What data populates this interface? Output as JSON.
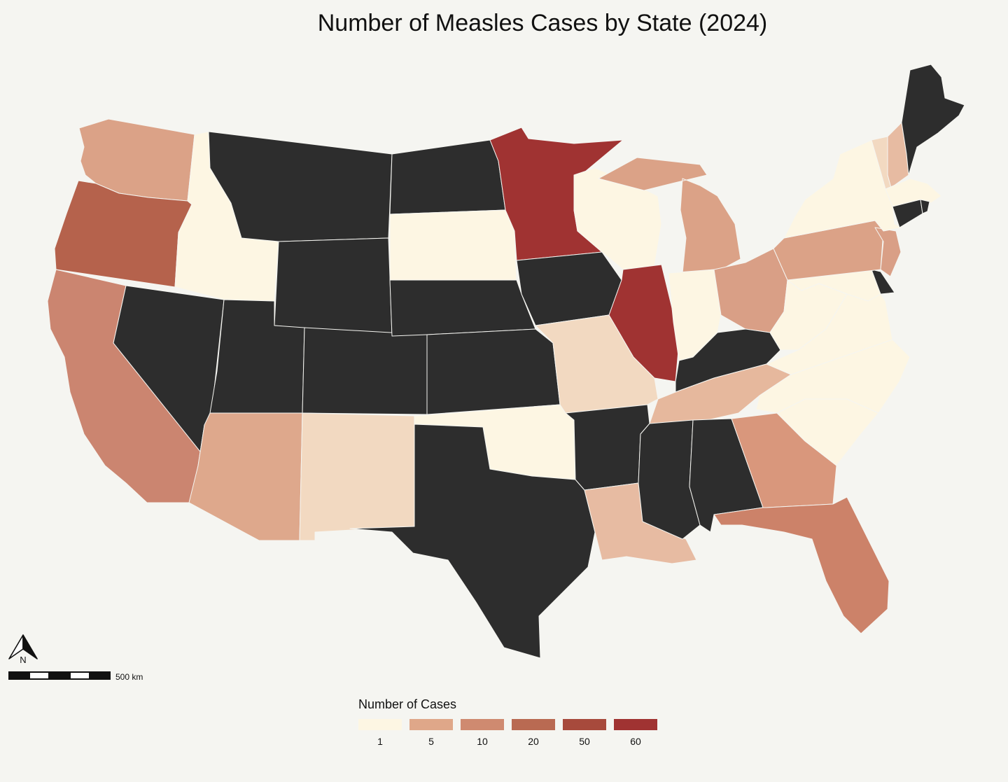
{
  "title": "Number of Measles Cases by State (2024)",
  "colors": {
    "background": "#f5f5f1",
    "no_data_or_other": "#2d2d2d",
    "scale": [
      "#fdf6e3",
      "#dfa789",
      "#cf8a70",
      "#b96a52",
      "#a74a3c",
      "#a03332"
    ]
  },
  "north_arrow": {
    "label": "N"
  },
  "scale_bar": {
    "label": "500 km"
  },
  "legend": {
    "title": "Number of Cases",
    "items": [
      {
        "label": "1",
        "color": "#fdf6e3"
      },
      {
        "label": "5",
        "color": "#dfa789"
      },
      {
        "label": "10",
        "color": "#cf8a70"
      },
      {
        "label": "20",
        "color": "#b96a52"
      },
      {
        "label": "50",
        "color": "#a74a3c"
      },
      {
        "label": "60",
        "color": "#a03332"
      }
    ]
  },
  "states": [
    {
      "name": "Washington",
      "color": "#dba287"
    },
    {
      "name": "Oregon",
      "color": "#b5624c"
    },
    {
      "name": "California",
      "color": "#cb8570"
    },
    {
      "name": "Nevada",
      "color": "#2d2d2d"
    },
    {
      "name": "Idaho",
      "color": "#fdf6e3"
    },
    {
      "name": "Montana",
      "color": "#2d2d2d"
    },
    {
      "name": "Wyoming",
      "color": "#2d2d2d"
    },
    {
      "name": "Utah",
      "color": "#2d2d2d"
    },
    {
      "name": "Arizona",
      "color": "#dea88c"
    },
    {
      "name": "Colorado",
      "color": "#2d2d2d"
    },
    {
      "name": "New Mexico",
      "color": "#f2d9c1"
    },
    {
      "name": "North Dakota",
      "color": "#2d2d2d"
    },
    {
      "name": "South Dakota",
      "color": "#fdf6e3"
    },
    {
      "name": "Nebraska",
      "color": "#2d2d2d"
    },
    {
      "name": "Kansas",
      "color": "#2d2d2d"
    },
    {
      "name": "Oklahoma",
      "color": "#fdf6e3"
    },
    {
      "name": "Texas",
      "color": "#2d2d2d"
    },
    {
      "name": "Minnesota",
      "color": "#a03332"
    },
    {
      "name": "Iowa",
      "color": "#2d2d2d"
    },
    {
      "name": "Missouri",
      "color": "#f2d9c1"
    },
    {
      "name": "Arkansas",
      "color": "#2d2d2d"
    },
    {
      "name": "Louisiana",
      "color": "#e7bba2"
    },
    {
      "name": "Wisconsin",
      "color": "#fdf6e3"
    },
    {
      "name": "Illinois",
      "color": "#a03332"
    },
    {
      "name": "Michigan",
      "color": "#dba287"
    },
    {
      "name": "Indiana",
      "color": "#fdf6e3"
    },
    {
      "name": "Ohio",
      "color": "#d99f86"
    },
    {
      "name": "Kentucky",
      "color": "#2d2d2d"
    },
    {
      "name": "Tennessee",
      "color": "#e6b89d"
    },
    {
      "name": "Mississippi",
      "color": "#2d2d2d"
    },
    {
      "name": "Alabama",
      "color": "#2d2d2d"
    },
    {
      "name": "Georgia",
      "color": "#d9977c"
    },
    {
      "name": "Florida",
      "color": "#cc8269"
    },
    {
      "name": "South Carolina",
      "color": "#fdf6e3"
    },
    {
      "name": "North Carolina",
      "color": "#fdf6e3"
    },
    {
      "name": "Virginia",
      "color": "#fdf6e3"
    },
    {
      "name": "West Virginia",
      "color": "#fdf6e3"
    },
    {
      "name": "Maryland",
      "color": "#fdf6e3"
    },
    {
      "name": "Delaware",
      "color": "#2d2d2d"
    },
    {
      "name": "Pennsylvania",
      "color": "#dba287"
    },
    {
      "name": "New Jersey",
      "color": "#d99f86"
    },
    {
      "name": "New York",
      "color": "#fdf6e3"
    },
    {
      "name": "Connecticut",
      "color": "#2d2d2d"
    },
    {
      "name": "Rhode Island",
      "color": "#2d2d2d"
    },
    {
      "name": "Massachusetts",
      "color": "#fdf6e3"
    },
    {
      "name": "Vermont",
      "color": "#f2d9c1"
    },
    {
      "name": "New Hampshire",
      "color": "#e7bba2"
    },
    {
      "name": "Maine",
      "color": "#2d2d2d"
    }
  ]
}
